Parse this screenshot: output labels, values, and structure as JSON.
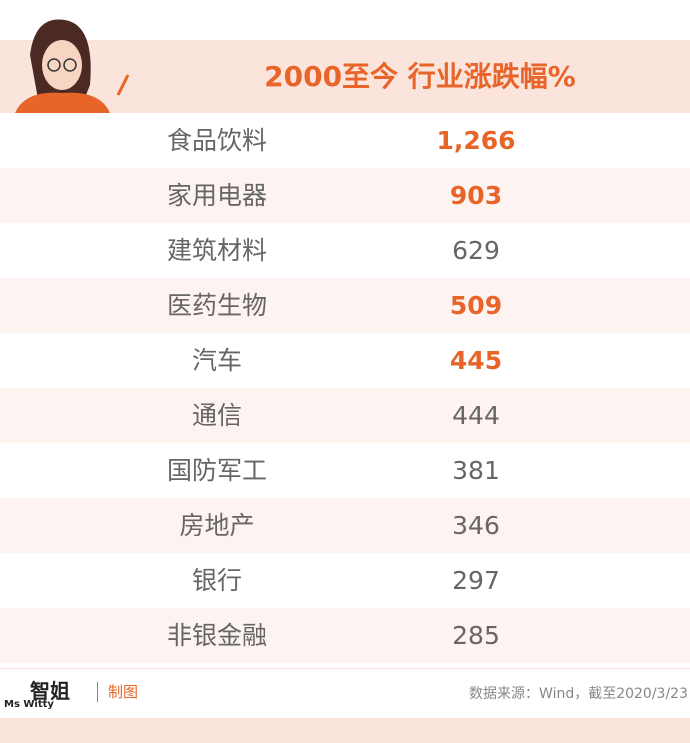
{
  "header": {
    "title": "2000至今 行业涨跌幅%"
  },
  "table": {
    "rows": [
      {
        "name": "食品饮料",
        "value": "1,266",
        "highlight": true
      },
      {
        "name": "家用电器",
        "value": 903,
        "highlight": true
      },
      {
        "name": "建筑材料",
        "value": 629,
        "highlight": false
      },
      {
        "name": "医药生物",
        "value": 509,
        "highlight": true
      },
      {
        "name": "汽车",
        "value": 445,
        "highlight": true
      },
      {
        "name": "通信",
        "value": 444,
        "highlight": false
      },
      {
        "name": "国防军工",
        "value": 381,
        "highlight": false
      },
      {
        "name": "房地产",
        "value": 346,
        "highlight": false
      },
      {
        "name": "银行",
        "value": 297,
        "highlight": false
      },
      {
        "name": "非银金融",
        "value": 285,
        "highlight": false
      }
    ]
  },
  "footer": {
    "logo": "Ms Witty",
    "logo_cn": "智姐",
    "label": "制图",
    "source": "数据来源：Wind，截至2020/3/23"
  }
}
